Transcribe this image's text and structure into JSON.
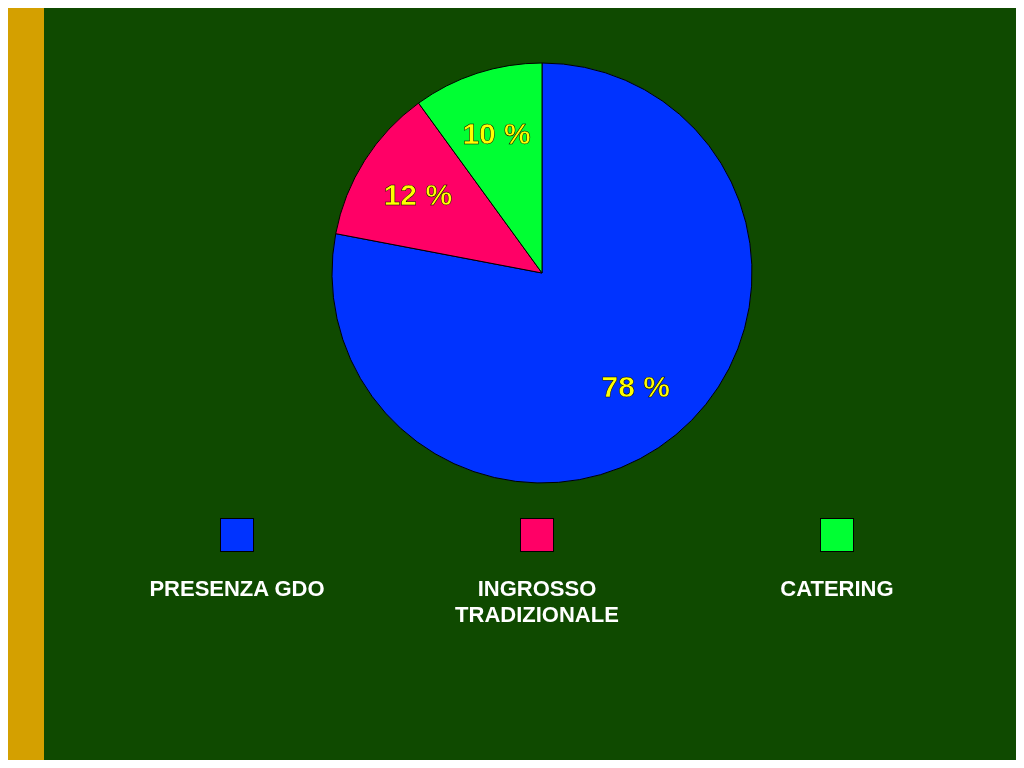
{
  "chart_data": {
    "type": "pie",
    "categories": [
      "PRESENZA GDO",
      "INGROSSO TRADIZIONALE",
      "CATERING"
    ],
    "values": [
      78,
      12,
      10
    ],
    "colors": [
      "#0033ff",
      "#ff0066",
      "#00ff33"
    ],
    "value_labels": [
      "78 %",
      "12 %",
      "10 %"
    ],
    "legend": "bottom"
  }
}
